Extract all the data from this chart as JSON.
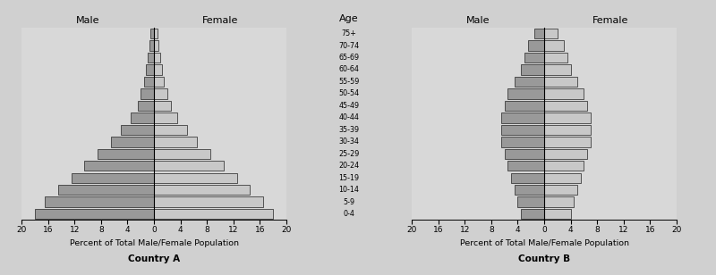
{
  "age_labels": [
    "0-4",
    "5-9",
    "10-14",
    "15-19",
    "20-24",
    "25-29",
    "30-34",
    "35-39",
    "40-44",
    "45-49",
    "50-54",
    "55-59",
    "60-64",
    "65-69",
    "70-74",
    "75+"
  ],
  "country_a": {
    "title": "Country A",
    "male": [
      18.0,
      16.5,
      14.5,
      12.5,
      10.5,
      8.5,
      6.5,
      5.0,
      3.5,
      2.5,
      2.0,
      1.5,
      1.2,
      0.9,
      0.7,
      0.5
    ],
    "female": [
      18.0,
      16.5,
      14.5,
      12.5,
      10.5,
      8.5,
      6.5,
      5.0,
      3.5,
      2.5,
      2.0,
      1.5,
      1.2,
      0.9,
      0.7,
      0.5
    ]
  },
  "country_b": {
    "title": "Country B",
    "male": [
      3.5,
      4.0,
      4.5,
      5.0,
      5.5,
      6.0,
      6.5,
      6.5,
      6.5,
      6.0,
      5.5,
      4.5,
      3.5,
      3.0,
      2.5,
      1.5
    ],
    "female": [
      4.0,
      4.5,
      5.0,
      5.5,
      6.0,
      6.5,
      7.0,
      7.0,
      7.0,
      6.5,
      6.0,
      5.0,
      4.0,
      3.5,
      3.0,
      2.0
    ]
  },
  "bar_color_male": "#999999",
  "bar_color_female": "#c8c8c8",
  "bar_edge_color": "#222222",
  "background_color": "#d8d8d8",
  "xlabel": "Percent of Total Male/Female Population",
  "age_title": "Age",
  "xlim": 20,
  "bar_height": 0.85,
  "fig_bg": "#d0d0d0"
}
